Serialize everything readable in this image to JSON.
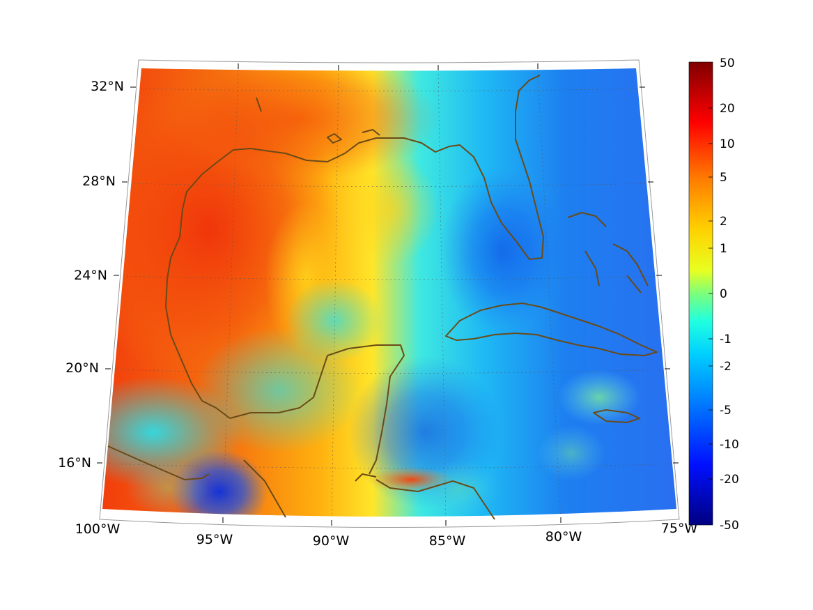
{
  "map": {
    "lat_labels": [
      "32°N",
      "28°N",
      "24°N",
      "20°N",
      "16°N"
    ],
    "lon_labels": [
      "100°W",
      "95°W",
      "90°W",
      "85°W",
      "80°W",
      "75°W"
    ],
    "colorbar": {
      "ticks": [
        "50",
        "20",
        "10",
        "5",
        "2",
        "1",
        "0",
        "-1",
        "-2",
        "-5",
        "-10",
        "-20",
        "-50"
      ]
    },
    "colors": {
      "coastline": "#6a4a17",
      "warm": "#f03a0a",
      "cool": "#1e6ef0",
      "frame": "#000000"
    }
  }
}
